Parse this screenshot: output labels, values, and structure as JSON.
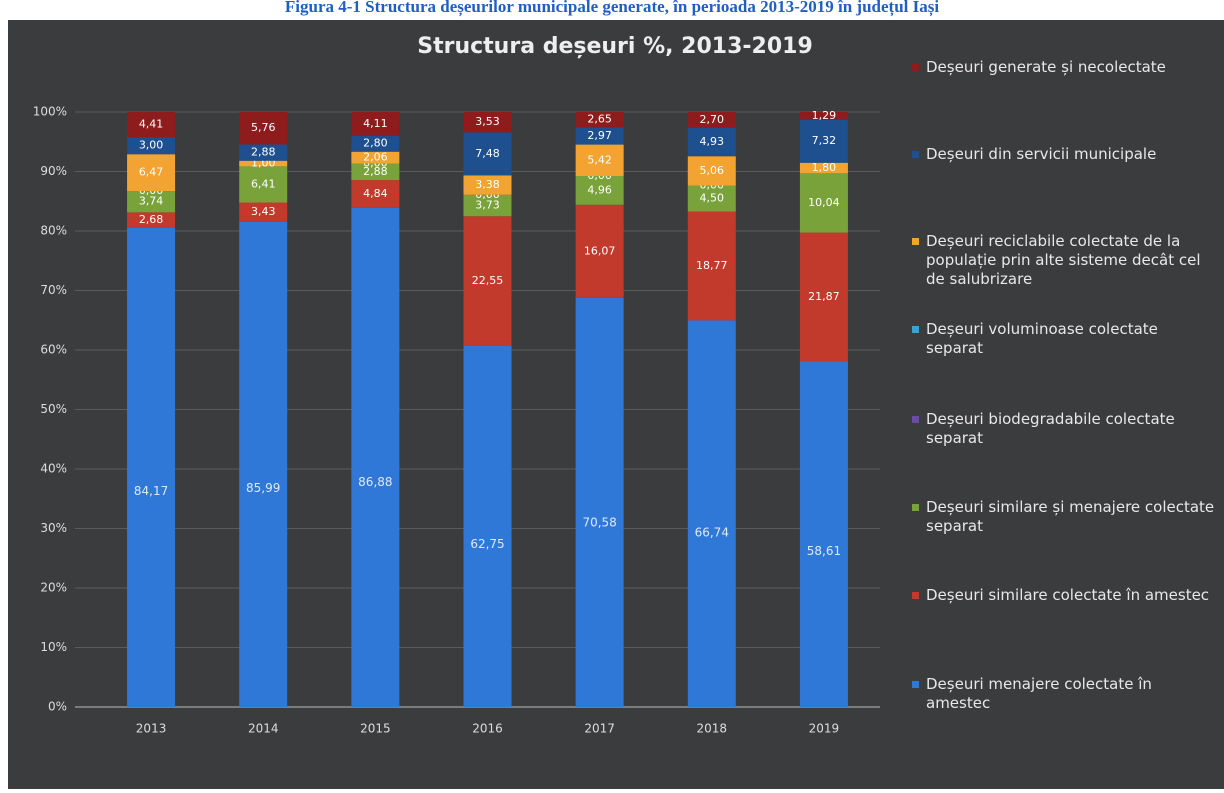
{
  "caption": "Figura 4-1 Structura deșeurilor municipale generate, în perioada 2013-2019 în județul Iași",
  "chart_data": {
    "type": "bar",
    "stacking": "percent",
    "title": "Structura deșeuri %, 2013-2019",
    "categories": [
      "2013",
      "2014",
      "2015",
      "2016",
      "2017",
      "2018",
      "2019"
    ],
    "ylim": [
      0,
      100
    ],
    "yticks": [
      {
        "value": 0,
        "label": "0%"
      },
      {
        "value": 10,
        "label": "10%"
      },
      {
        "value": 20,
        "label": "20%"
      },
      {
        "value": 30,
        "label": "30%"
      },
      {
        "value": 40,
        "label": "40%"
      },
      {
        "value": 50,
        "label": "50%"
      },
      {
        "value": 60,
        "label": "60%"
      },
      {
        "value": 70,
        "label": "70%"
      },
      {
        "value": 80,
        "label": "80%"
      },
      {
        "value": 90,
        "label": "90%"
      },
      {
        "value": 100,
        "label": "100%"
      }
    ],
    "grid": true,
    "legend": "right",
    "series": [
      {
        "name": "Deșeuri menajere colectate în amestec",
        "color": "#2f78d8",
        "values": [
          84.17,
          85.99,
          86.88,
          62.75,
          70.58,
          66.74,
          58.61
        ],
        "value_labels": [
          "84,17",
          "85,99",
          "86,88",
          "62,75",
          "70,58",
          "66,74",
          "58,61"
        ]
      },
      {
        "name": "Deșeuri similare colectate în amestec",
        "color": "#c23a2c",
        "values": [
          2.68,
          3.43,
          4.84,
          22.55,
          16.07,
          18.77,
          21.87
        ],
        "value_labels": [
          "2,68",
          "3,43",
          "4,84",
          "22,55",
          "16,07",
          "18,77",
          "21,87"
        ]
      },
      {
        "name": "Deșeuri similare și menajere colectate separat",
        "color": "#79a33a",
        "values": [
          3.74,
          6.41,
          2.88,
          3.73,
          4.96,
          4.5,
          10.04
        ],
        "value_labels": [
          "3,74",
          "6,41",
          "2,88",
          "3,73",
          "4,96",
          "4,50",
          "10,04"
        ]
      },
      {
        "name": "Deșeuri biodegradabile colectate separat",
        "color": "#6a4ca3",
        "values": [
          0,
          null,
          0,
          null,
          0,
          0,
          null
        ],
        "value_labels": [
          "0,00",
          null,
          "0,00",
          null,
          "0,00",
          "0,00",
          null
        ]
      },
      {
        "name": "Deșeuri voluminoase colectate separat",
        "color": "#3aa3d3",
        "values": [
          null,
          null,
          null,
          0,
          null,
          null,
          null
        ],
        "value_labels": [
          null,
          null,
          null,
          "0,00",
          null,
          null,
          null
        ]
      },
      {
        "name": "Deșeuri reciclabile colectate de la populație prin alte sisteme decât cel de salubrizare",
        "color": "#f2a332",
        "values": [
          6.47,
          1,
          2.06,
          3.38,
          5.42,
          5.06,
          1.8
        ],
        "value_labels": [
          "6,47",
          "1,00",
          "2,06",
          "3,38",
          "5,42",
          "5,06",
          "1,80"
        ]
      },
      {
        "name": "Deșeuri din servicii municipale",
        "color": "#1e4f8f",
        "values": [
          3,
          2.88,
          2.8,
          7.48,
          2.97,
          4.93,
          7.32
        ],
        "value_labels": [
          "3,00",
          "2,88",
          "2,80",
          "7,48",
          "2,97",
          "4,93",
          "7,32"
        ]
      },
      {
        "name": "Deșeuri generate și necolectate",
        "color": "#8e1c1c",
        "values": [
          4.41,
          5.76,
          4.11,
          3.53,
          2.65,
          2.7,
          1.29
        ],
        "value_labels": [
          "4,41",
          "5,76",
          "4,11",
          "3,53",
          "2,65",
          "2,70",
          "1,29"
        ]
      }
    ]
  }
}
